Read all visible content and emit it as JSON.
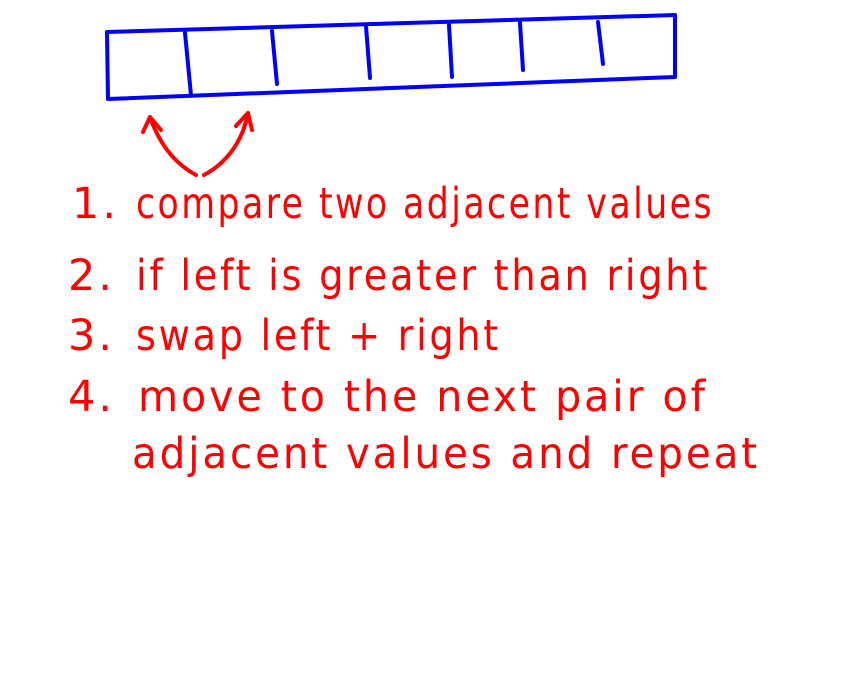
{
  "colors": {
    "background": "#ffffff",
    "array_stroke": "#0000ff",
    "text_color": "#ff0000"
  },
  "array_cell_count": 7,
  "compare_arrows_icon": "double-curved-arrow-icon",
  "steps": [
    {
      "number": "1.",
      "text": "compare two adjacent values"
    },
    {
      "number": "2.",
      "text": "if left is greater than right"
    },
    {
      "number": "3.",
      "text": "swap left + right"
    },
    {
      "number": "4.",
      "text": "move to the next pair of"
    }
  ],
  "step_4_continuation": "adjacent values and repeat"
}
